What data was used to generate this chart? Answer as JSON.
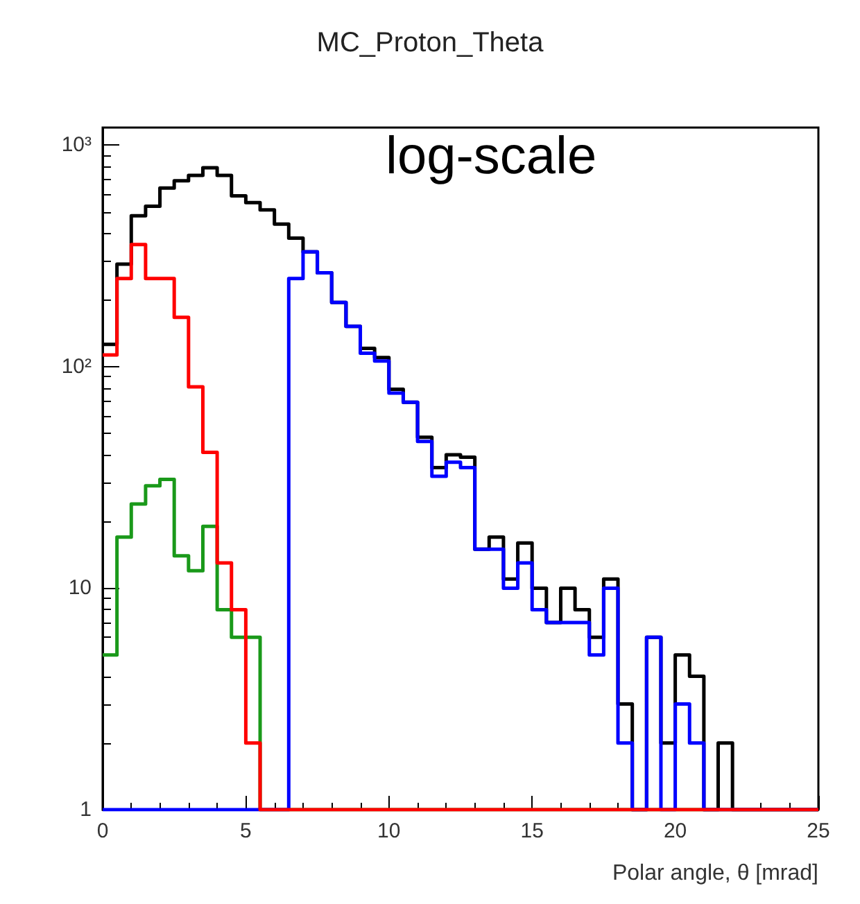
{
  "chart_data": {
    "type": "histogram",
    "title": "MC_Proton_Theta",
    "xlabel": "Polar angle, θ [mrad]",
    "annotations": [
      "log-scale"
    ],
    "bins": [
      0,
      0.5,
      1,
      1.5,
      2,
      2.5,
      3,
      3.5,
      4,
      4.5,
      5,
      5.5,
      6,
      6.5,
      7,
      7.5,
      8,
      8.5,
      9,
      9.5,
      10,
      10.5,
      11,
      11.5,
      12,
      12.5,
      13,
      13.5,
      14,
      14.5,
      15,
      15.5,
      16,
      16.5,
      17,
      17.5,
      18,
      18.5,
      19,
      19.5,
      20,
      20.5,
      21,
      21.5,
      22,
      22.5,
      23,
      23.5,
      24,
      24.5,
      25
    ],
    "series": [
      {
        "color": "#000000",
        "values": [
          126,
          290,
          480,
          530,
          640,
          690,
          730,
          790,
          730,
          590,
          550,
          510,
          440,
          380,
          330,
          265,
          195,
          152,
          121,
          110,
          79,
          69,
          48,
          35,
          40,
          39,
          15,
          17,
          11,
          16,
          10,
          7,
          10,
          8,
          6,
          11,
          3,
          1,
          6,
          2,
          5,
          4,
          1,
          2,
          1,
          1,
          1,
          1,
          1,
          1
        ]
      },
      {
        "color": "#1a991a",
        "values": [
          5,
          17,
          24,
          29,
          31,
          14,
          12,
          19,
          8,
          6,
          6,
          1,
          1,
          1,
          1,
          1,
          1,
          1,
          1,
          1,
          1,
          1,
          1,
          1,
          1,
          1,
          1,
          1,
          1,
          1,
          1,
          1,
          1,
          1,
          1,
          1,
          1,
          1,
          1,
          1,
          1,
          1,
          1,
          1,
          1,
          1,
          1,
          1,
          1,
          1
        ]
      },
      {
        "color": "#0000ff",
        "values": [
          1,
          1,
          1,
          1,
          1,
          1,
          1,
          1,
          1,
          1,
          1,
          1,
          1,
          250,
          330,
          265,
          195,
          152,
          115,
          106,
          76,
          69,
          46,
          32,
          37,
          35,
          15,
          15,
          10,
          13,
          8,
          7,
          7,
          7,
          5,
          10,
          2,
          1,
          6,
          1,
          3,
          2,
          1,
          1,
          1,
          1,
          1,
          1,
          1,
          1
        ]
      },
      {
        "color": "#ff0000",
        "values": [
          113,
          250,
          356,
          250,
          250,
          167,
          81,
          41,
          13,
          8,
          2,
          1,
          1,
          1,
          1,
          1,
          1,
          1,
          1,
          1,
          1,
          1,
          1,
          1,
          1,
          1,
          1,
          1,
          1,
          1,
          1,
          1,
          1,
          1,
          1,
          1,
          1,
          1,
          1,
          1,
          1,
          1,
          1,
          1,
          1,
          1,
          1,
          1,
          1,
          1
        ]
      }
    ],
    "log": "y",
    "xlim": [
      0,
      25
    ],
    "xticks": [
      0,
      5,
      10,
      15,
      20,
      25
    ],
    "ylim": [
      1,
      1200
    ],
    "yticks": [
      {
        "value": 1,
        "label": "1"
      },
      {
        "value": 10,
        "label": "10"
      },
      {
        "value": 100,
        "label": "10²"
      },
      {
        "value": 1000,
        "label": "10³"
      }
    ],
    "grid": false
  }
}
